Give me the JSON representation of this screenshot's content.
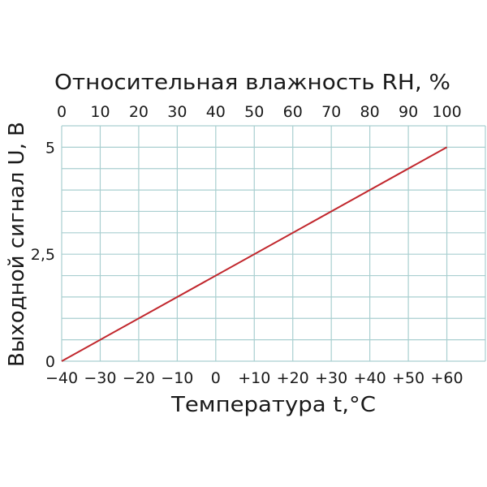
{
  "chart_data": {
    "type": "line",
    "title": "Относительная влажность RH, %",
    "xlabel": "Температура t,°C",
    "ylabel": "Выходной сигнал U, В",
    "x_top_label": "Относительная влажность RH, %",
    "xlim": [
      -40,
      70
    ],
    "ylim": [
      0,
      5.5
    ],
    "x_top_lim": [
      0,
      110
    ],
    "x_ticks": [
      "−40",
      "−30",
      "−20",
      "−10",
      "0",
      "+10",
      "+20",
      "+30",
      "+40",
      "+50",
      "+60"
    ],
    "x_tick_values": [
      -40,
      -30,
      -20,
      -10,
      0,
      10,
      20,
      30,
      40,
      50,
      60
    ],
    "x_top_ticks": [
      "0",
      "10",
      "20",
      "30",
      "40",
      "50",
      "60",
      "70",
      "80",
      "90",
      "100"
    ],
    "x_top_tick_values": [
      0,
      10,
      20,
      30,
      40,
      50,
      60,
      70,
      80,
      90,
      100
    ],
    "y_ticks": [
      "0",
      "2,5",
      "5"
    ],
    "y_tick_values": [
      0,
      2.5,
      5
    ],
    "grid": true,
    "grid_x_step": 10,
    "grid_y_step": 0.5,
    "series": [
      {
        "x": [
          -40,
          60
        ],
        "x_top": [
          0,
          100
        ],
        "y": [
          0,
          5
        ],
        "color": "#c1272d"
      }
    ],
    "grid_color": "#a9cfd0"
  }
}
